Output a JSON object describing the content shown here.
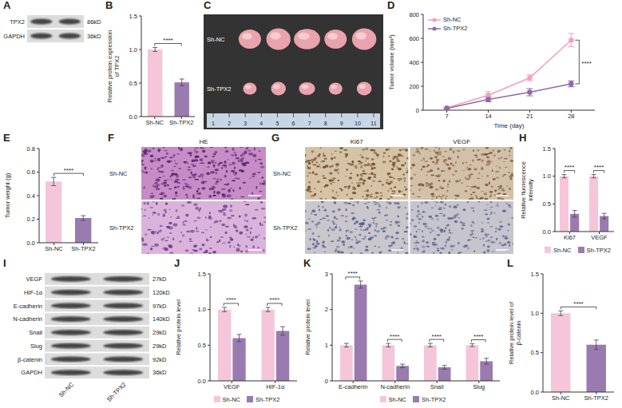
{
  "chart_data": [
    {
      "panel": "B",
      "type": "bar",
      "ylabel": "Relative protein expression of TPX2",
      "categories": [
        "Sh-NC",
        "Sh-TPX2"
      ],
      "values": [
        1,
        0.51
      ],
      "errors": [
        0.03,
        0.05
      ],
      "colors": [
        "#f5c6da",
        "#9a7bb0"
      ],
      "ylim": [
        0,
        1.5
      ],
      "yticks": [
        {
          "value": 0,
          "label": "0.0"
        },
        {
          "value": 0.5,
          "label": "0.5"
        },
        {
          "value": 1,
          "label": "1.0"
        },
        {
          "value": 1.5,
          "label": "1.5"
        }
      ],
      "significance": "****"
    },
    {
      "panel": "D",
      "type": "line",
      "xlabel": "Time (day)",
      "ylabel": "Tumor volume (mm³)",
      "x": [
        7,
        14,
        21,
        28
      ],
      "xlim": [
        3,
        32
      ],
      "xticks": [
        7,
        14,
        21,
        28
      ],
      "ylim": [
        0,
        800
      ],
      "yticks": [
        0,
        200,
        400,
        600,
        800
      ],
      "series": [
        {
          "name": "Sh-NC",
          "color": "#f29fc0",
          "marker": "circle",
          "values": [
            20,
            125,
            270,
            585
          ],
          "errors": [
            5,
            30,
            25,
            55
          ]
        },
        {
          "name": "Sh-TPX2",
          "color": "#8e6aa8",
          "marker": "circle",
          "values": [
            15,
            90,
            150,
            220
          ],
          "errors": [
            4,
            20,
            30,
            25
          ]
        }
      ],
      "legend": "upper left",
      "significance": "****"
    },
    {
      "panel": "E",
      "type": "bar",
      "ylabel": "Tumor weight (g)",
      "categories": [
        "Sh-NC",
        "Sh-TPX2"
      ],
      "values": [
        0.52,
        0.21
      ],
      "errors": [
        0.035,
        0.02
      ],
      "colors": [
        "#f5c6da",
        "#9a7bb0"
      ],
      "ylim": [
        0,
        0.8
      ],
      "yticks": [
        {
          "value": 0,
          "label": "0.0"
        },
        {
          "value": 0.2,
          "label": "0.2"
        },
        {
          "value": 0.4,
          "label": "0.4"
        },
        {
          "value": 0.6,
          "label": "0.6"
        },
        {
          "value": 0.8,
          "label": "0.8"
        }
      ],
      "significance": "****"
    },
    {
      "panel": "H",
      "type": "bar",
      "ylabel": "Relative fluorescence intensity",
      "categories": [
        "Ki67",
        "VEGF"
      ],
      "series": [
        {
          "name": "Sh-NC",
          "color": "#f5c6da",
          "values": [
            1,
            1
          ],
          "errors": [
            0.03,
            0.03
          ]
        },
        {
          "name": "Sh-TPX2",
          "color": "#9a7bb0",
          "values": [
            0.32,
            0.28
          ],
          "errors": [
            0.06,
            0.05
          ]
        }
      ],
      "ylim": [
        0,
        1.5
      ],
      "yticks": [
        {
          "value": 0,
          "label": "0.0"
        },
        {
          "value": 0.5,
          "label": "0.5"
        },
        {
          "value": 1,
          "label": "1.0"
        },
        {
          "value": 1.5,
          "label": "1.5"
        }
      ],
      "significance": [
        "****",
        "****"
      ],
      "legend": "bottom"
    },
    {
      "panel": "J",
      "type": "bar",
      "ylabel": "Relative protein level",
      "categories": [
        "VEGF",
        "HIF-1α"
      ],
      "series": [
        {
          "name": "Sh-NC",
          "color": "#f5c6da",
          "values": [
            1,
            1
          ],
          "errors": [
            0.03,
            0.03
          ]
        },
        {
          "name": "Sh-TPX2",
          "color": "#9a7bb0",
          "values": [
            0.6,
            0.7
          ],
          "errors": [
            0.05,
            0.06
          ]
        }
      ],
      "ylim": [
        0,
        1.5
      ],
      "yticks": [
        {
          "value": 0,
          "label": "0.0"
        },
        {
          "value": 0.5,
          "label": "0.5"
        },
        {
          "value": 1,
          "label": "1.0"
        },
        {
          "value": 1.5,
          "label": "1.5"
        }
      ],
      "significance": [
        "****",
        "****"
      ],
      "legend": "bottom"
    },
    {
      "panel": "K",
      "type": "bar",
      "ylabel": "Relative protein level",
      "categories": [
        "E-cadherin",
        "N-cadherin",
        "Snail",
        "Slug"
      ],
      "series": [
        {
          "name": "Sh-NC",
          "color": "#f5c6da",
          "values": [
            1,
            1,
            1,
            1
          ],
          "errors": [
            0.05,
            0.05,
            0.05,
            0.04
          ]
        },
        {
          "name": "Sh-TPX2",
          "color": "#9a7bb0",
          "values": [
            2.7,
            0.42,
            0.38,
            0.55
          ],
          "errors": [
            0.1,
            0.05,
            0.05,
            0.08
          ]
        }
      ],
      "ylim": [
        0,
        3
      ],
      "yticks": [
        0,
        1,
        2,
        3
      ],
      "significance": [
        "****",
        "****",
        "****",
        "****"
      ],
      "legend": "bottom"
    },
    {
      "panel": "L",
      "type": "bar",
      "ylabel": "Relative protein level of β-catenin",
      "categories": [
        "Sh-NC",
        "Sh-TPX2"
      ],
      "values": [
        1,
        0.6
      ],
      "errors": [
        0.03,
        0.06
      ],
      "colors": [
        "#f5c6da",
        "#9a7bb0"
      ],
      "ylim": [
        0,
        1.5
      ],
      "yticks": [
        {
          "value": 0,
          "label": "0.0"
        },
        {
          "value": 0.5,
          "label": "0.5"
        },
        {
          "value": 1,
          "label": "1.0"
        },
        {
          "value": 1.5,
          "label": "1.5"
        }
      ],
      "significance": "****"
    }
  ],
  "blots": [
    {
      "panel": "A",
      "proteins": [
        {
          "name": "TPX2",
          "mw": "86kD"
        },
        {
          "name": "GAPDH",
          "mw": "36kD"
        }
      ]
    },
    {
      "panel": "I",
      "proteins": [
        {
          "name": "VEGF",
          "mw": "27kD"
        },
        {
          "name": "HIF-1α",
          "mw": "120kD"
        },
        {
          "name": "E-cadherin",
          "mw": "97kD"
        },
        {
          "name": "N-cadherin",
          "mw": "140kD"
        },
        {
          "name": "Snail",
          "mw": "29kD"
        },
        {
          "name": "Slug",
          "mw": "29kD"
        },
        {
          "name": "β-catenin",
          "mw": "92kD"
        },
        {
          "name": "GAPDH",
          "mw": "36kD"
        }
      ],
      "lanes": [
        "Sh-NC",
        "Sh-TPX2"
      ]
    }
  ],
  "photos": [
    {
      "panel": "C",
      "rows": [
        "Sh-NC",
        "Sh-TPX2"
      ],
      "ruler": [
        1,
        2,
        3,
        4,
        5,
        6,
        7,
        8,
        9,
        10,
        11
      ]
    },
    {
      "panel": "F",
      "title": "HE",
      "rows": [
        "Sh-NC",
        "Sh-TPX2"
      ]
    },
    {
      "panel": "G",
      "columns": [
        "Ki67",
        "VEGF"
      ],
      "rows": [
        "Sh-NC",
        "Sh-TPX2"
      ]
    }
  ]
}
